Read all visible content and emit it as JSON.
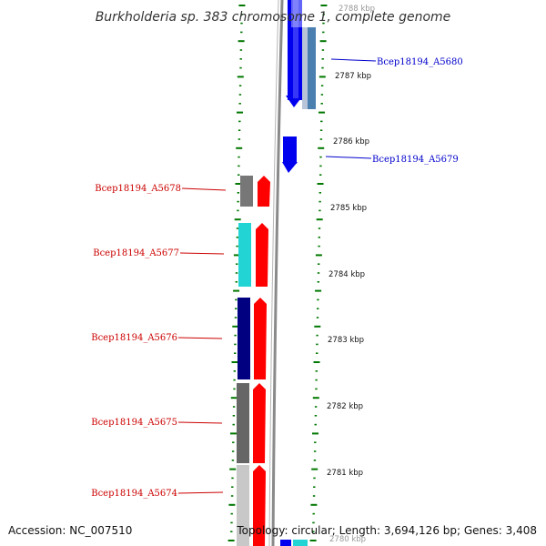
{
  "title": "Burkholderia sp. 383 chromosome 1, complete genome",
  "footer": {
    "accession": "Accession: NC_007510",
    "topology": "Topology: circular; Length: 3,694,126 bp; Genes: 3,408"
  },
  "colors": {
    "forward_label": "#0000cc",
    "reverse_label": "#cc0000",
    "forward_gene": "#0000ff",
    "reverse_gene": "#ff0000",
    "tick": "#007700"
  },
  "ticks": [
    {
      "label": "2788 kbp"
    },
    {
      "label": "2787 kbp"
    },
    {
      "label": "2786 kbp"
    },
    {
      "label": "2785 kbp"
    },
    {
      "label": "2784 kbp"
    },
    {
      "label": "2783 kbp"
    },
    {
      "label": "2782 kbp"
    },
    {
      "label": "2781 kbp"
    },
    {
      "label": "2780 kbp"
    }
  ],
  "genes": [
    {
      "label": "Bcep18194_A5680",
      "strand": "forward"
    },
    {
      "label": "Bcep18194_A5679",
      "strand": "forward"
    },
    {
      "label": "Bcep18194_A5678",
      "strand": "reverse"
    },
    {
      "label": "Bcep18194_A5677",
      "strand": "reverse"
    },
    {
      "label": "Bcep18194_A5676",
      "strand": "reverse"
    },
    {
      "label": "Bcep18194_A5675",
      "strand": "reverse"
    },
    {
      "label": "Bcep18194_A5674",
      "strand": "reverse"
    }
  ]
}
